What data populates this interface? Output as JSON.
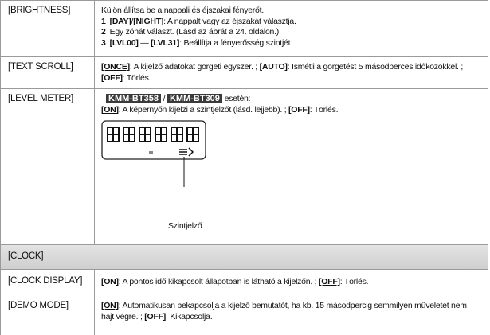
{
  "rows": [
    {
      "label": "[BRIGHTNESS]",
      "lines": [
        [
          "Külön állítsa be a nappali és éjszakai fényerőt."
        ],
        [
          "1",
          "[DAY]",
          "/",
          "[NIGHT]",
          ": A nappalt vagy az éjszakát választja."
        ],
        [
          "2",
          "Egy zónát választ. (Lásd az ábrát a 24. oldalon.)"
        ],
        [
          "3",
          "[LVL00]",
          " — ",
          "[LVL31]",
          ": Beállítja a fényerősség szintjét."
        ]
      ]
    },
    {
      "label": "[TEXT SCROLL]",
      "lines": [
        [
          "[ONCE]",
          ": A kijelző adatokat görgeti egyszer. ; ",
          "[AUTO]",
          ": Ismétli a görgetést 5 másodperces időközökkel. ; ",
          "[OFF]",
          ": Törlés."
        ]
      ]
    },
    {
      "label": "[LEVEL METER]",
      "lines": [
        [
          "KMM-BT358",
          "/",
          "KMM-BT309",
          "esetén:"
        ],
        [
          "[ON]",
          ": A képernyőn kijelzi a szintjelzőt (lásd. lejjebb). ; ",
          "[OFF]",
          ": Törlés."
        ]
      ],
      "callout": "Szintjelző"
    },
    {
      "label": "[CLOCK]"
    },
    {
      "label": "[CLOCK DISPLAY]",
      "lines": [
        [
          "[ON]",
          ": A pontos idő kikapcsolt állapotban is látható a kijelzőn. ; ",
          "[OFF]",
          ": Törlés."
        ]
      ]
    },
    {
      "label": "[DEMO MODE]",
      "lines": [
        [
          "[ON]",
          ": Automatikusan bekapcsolja a kijelző bemutatót, ha kb. 15 másodpercig semmilyen műveletet nem hajt végre. ; ",
          "[OFF]",
          ": Kikapcsolja."
        ]
      ]
    }
  ]
}
